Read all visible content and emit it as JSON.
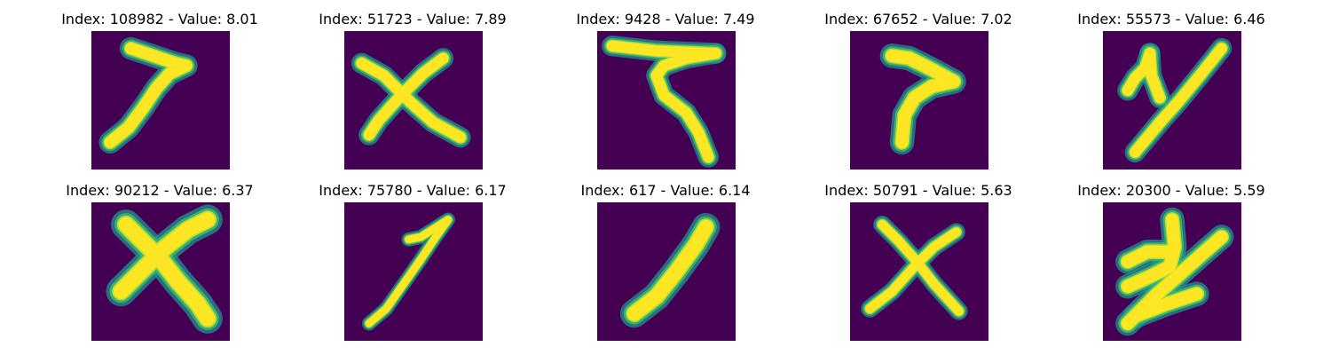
{
  "colors": {
    "background": "#440154",
    "stroke_core": "#fde725",
    "stroke_mid": "#b5de2b",
    "stroke_edge": "#35b779",
    "stroke_halo": "#21918c"
  },
  "panels": [
    {
      "title": "Index: 108982 - Value: 8.01",
      "glyph": "seven-slanted"
    },
    {
      "title": "Index: 51723 - Value: 7.89",
      "glyph": "x"
    },
    {
      "title": "Index: 9428 - Value: 7.49",
      "glyph": "seven-topbar"
    },
    {
      "title": "Index: 67652 - Value: 7.02",
      "glyph": "seven-hook"
    },
    {
      "title": "Index: 55573 - Value: 6.46",
      "glyph": "y-shape"
    },
    {
      "title": "Index: 90212 - Value: 6.37",
      "glyph": "x-bold"
    },
    {
      "title": "Index: 75780 - Value: 6.17",
      "glyph": "seven-thin"
    },
    {
      "title": "Index: 617 - Value: 6.14",
      "glyph": "one-slanted"
    },
    {
      "title": "Index: 50791 - Value: 5.63",
      "glyph": "x-thin"
    },
    {
      "title": "Index: 20300 - Value: 5.59",
      "glyph": "two-zigzag"
    }
  ]
}
